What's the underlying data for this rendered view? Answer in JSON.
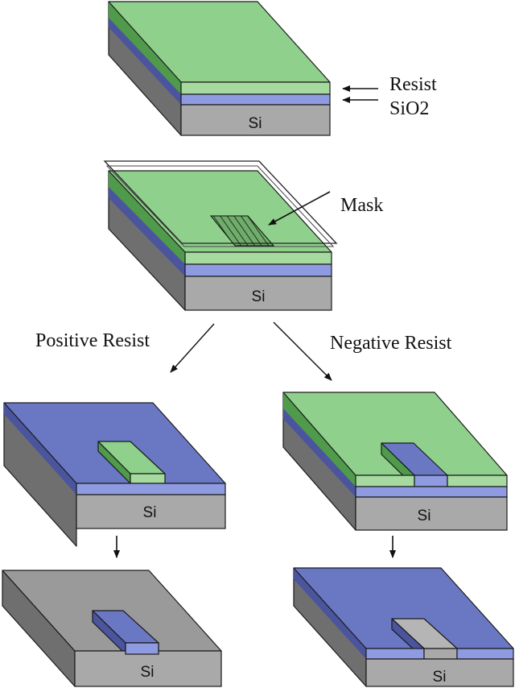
{
  "labels": {
    "resist": "Resist",
    "sio2": "SiO2",
    "mask": "Mask",
    "positive": "Positive Resist",
    "negative": "Negative Resist",
    "si1": "Si",
    "si2": "Si",
    "si3": "Si",
    "si4": "Si",
    "si5": "Si",
    "si6": "Si"
  },
  "colors": {
    "resist_top": "#8fd08c",
    "resist_front": "#a6da9f",
    "resist_side": "#4f9a4b",
    "oxide_top": "#6a78c4",
    "oxide_front": "#8e9be0",
    "oxide_side": "#4a559e",
    "si_top": "#9a9a9a",
    "si_front": "#a9a9a9",
    "si_side": "#6f6f6f"
  }
}
